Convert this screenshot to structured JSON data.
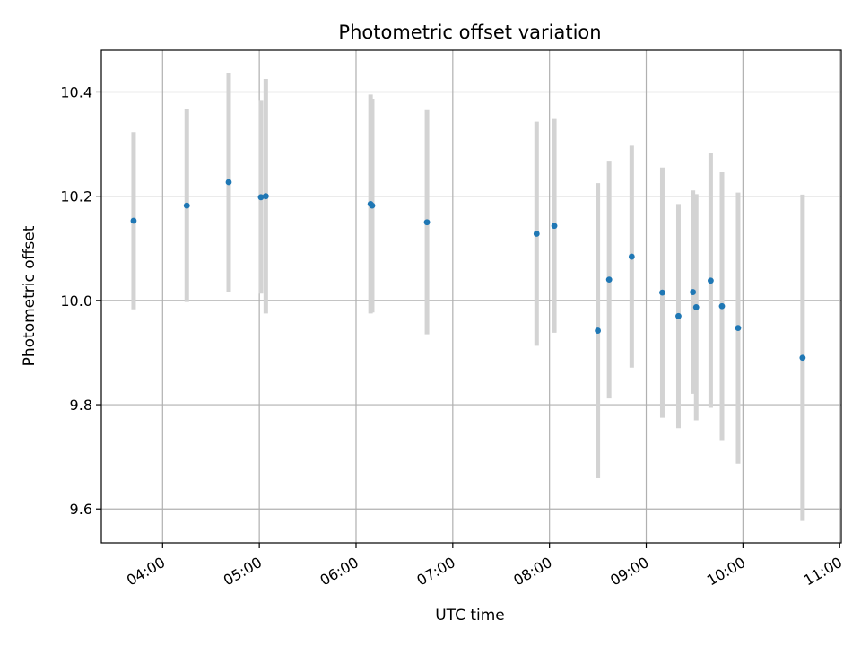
{
  "chart_data": {
    "type": "scatter",
    "title": "Photometric offset variation",
    "xlabel": "UTC time",
    "ylabel": "Photometric offset",
    "x_tick_labels": [
      "04:00",
      "05:00",
      "06:00",
      "07:00",
      "08:00",
      "09:00",
      "10:00",
      "11:00"
    ],
    "x_ticks": [
      "04:00",
      "05:00",
      "06:00",
      "07:00",
      "08:00",
      "09:00",
      "10:00",
      "11:00"
    ],
    "y_tick_labels": [
      "9.6",
      "9.8",
      "10.0",
      "10.2",
      "10.4"
    ],
    "y_ticks": [
      9.6,
      9.8,
      10.0,
      10.2,
      10.4
    ],
    "xlim": [
      "03:22",
      "11:01"
    ],
    "ylim": [
      9.535,
      10.48
    ],
    "grid": true,
    "legend": "none",
    "colors": {
      "points": "#1f77b4",
      "error_bars": "#d3d3d3",
      "grid": "#b0b0b0"
    },
    "points": [
      {
        "time": "03:42",
        "offset": 10.153,
        "err": 0.17
      },
      {
        "time": "04:15",
        "offset": 10.182,
        "err": 0.185
      },
      {
        "time": "04:41",
        "offset": 10.227,
        "err": 0.21
      },
      {
        "time": "05:01",
        "offset": 10.198,
        "err": 0.185
      },
      {
        "time": "05:04",
        "offset": 10.2,
        "err": 0.225
      },
      {
        "time": "06:09",
        "offset": 10.185,
        "err": 0.21
      },
      {
        "time": "06:10",
        "offset": 10.182,
        "err": 0.205
      },
      {
        "time": "06:44",
        "offset": 10.15,
        "err": 0.215
      },
      {
        "time": "07:52",
        "offset": 10.128,
        "err": 0.215
      },
      {
        "time": "08:03",
        "offset": 10.143,
        "err": 0.205
      },
      {
        "time": "08:30",
        "offset": 9.942,
        "err": 0.283
      },
      {
        "time": "08:37",
        "offset": 10.04,
        "err": 0.228
      },
      {
        "time": "08:51",
        "offset": 10.084,
        "err": 0.213
      },
      {
        "time": "09:10",
        "offset": 10.015,
        "err": 0.24
      },
      {
        "time": "09:20",
        "offset": 9.97,
        "err": 0.215
      },
      {
        "time": "09:29",
        "offset": 10.016,
        "err": 0.195
      },
      {
        "time": "09:31",
        "offset": 9.987,
        "err": 0.217
      },
      {
        "time": "09:40",
        "offset": 10.038,
        "err": 0.244
      },
      {
        "time": "09:47",
        "offset": 9.989,
        "err": 0.257
      },
      {
        "time": "09:57",
        "offset": 9.947,
        "err": 0.26
      },
      {
        "time": "10:37",
        "offset": 9.89,
        "err": 0.313
      }
    ]
  }
}
